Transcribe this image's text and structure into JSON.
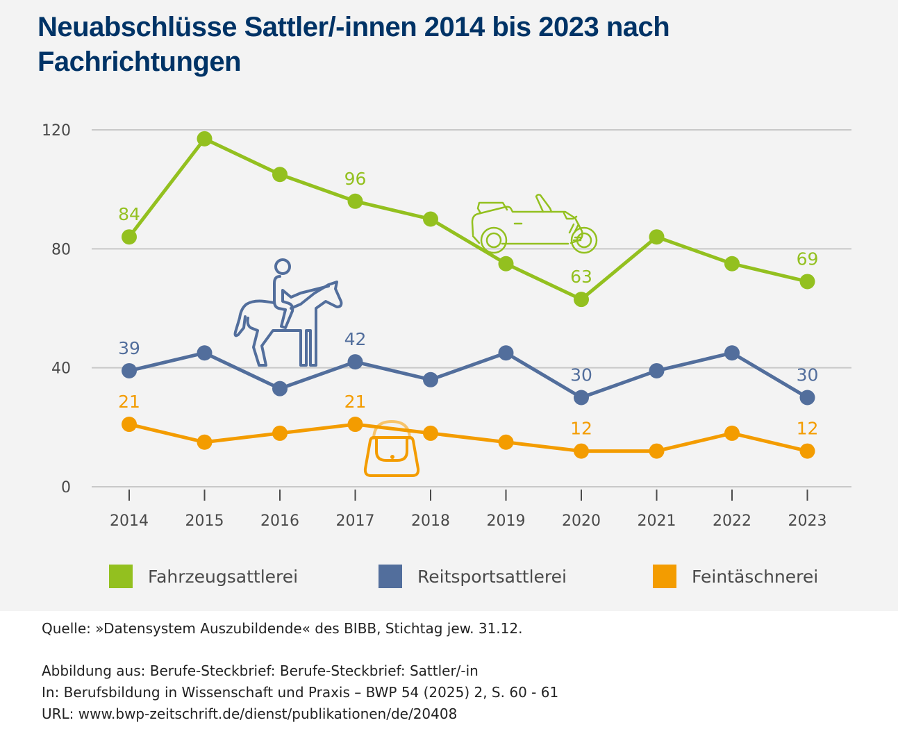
{
  "title": "Neuabschlüsse Sattler/-innen 2014 bis 2023 nach Fachrichtungen",
  "colors": {
    "green": "#93c01f",
    "blue": "#526e9c",
    "orange": "#f39c00",
    "grid": "#c8c8c8",
    "tick": "#4a4a4a"
  },
  "chart_data": {
    "type": "line",
    "title": "Neuabschlüsse Sattler/-innen 2014 bis 2023 nach Fachrichtungen",
    "xlabel": "",
    "ylabel": "",
    "x": [
      "2014",
      "2015",
      "2016",
      "2017",
      "2018",
      "2019",
      "2020",
      "2021",
      "2022",
      "2023"
    ],
    "ylim": [
      0,
      120
    ],
    "yticks": [
      0,
      40,
      80,
      120
    ],
    "grid": true,
    "legend_position": "bottom",
    "series": [
      {
        "name": "Fahrzeugsattlerei",
        "color": "#93c01f",
        "values": [
          84,
          117,
          105,
          96,
          90,
          75,
          63,
          84,
          75,
          69
        ],
        "labeled_points": [
          {
            "index": 0,
            "label": "84"
          },
          {
            "index": 3,
            "label": "96"
          },
          {
            "index": 6,
            "label": "63"
          },
          {
            "index": 9,
            "label": "69"
          }
        ],
        "icon": "convertible-car-icon"
      },
      {
        "name": "Reitsportsattlerei",
        "color": "#526e9c",
        "values": [
          39,
          45,
          33,
          42,
          36,
          45,
          30,
          39,
          45,
          30
        ],
        "labeled_points": [
          {
            "index": 0,
            "label": "39"
          },
          {
            "index": 3,
            "label": "42"
          },
          {
            "index": 6,
            "label": "30"
          },
          {
            "index": 9,
            "label": "30"
          }
        ],
        "icon": "horse-rider-icon"
      },
      {
        "name": "Feintäschnerei",
        "color": "#f39c00",
        "values": [
          21,
          15,
          18,
          21,
          18,
          15,
          12,
          12,
          18,
          12
        ],
        "labeled_points": [
          {
            "index": 0,
            "label": "21"
          },
          {
            "index": 3,
            "label": "21"
          },
          {
            "index": 6,
            "label": "12"
          },
          {
            "index": 9,
            "label": "12"
          }
        ],
        "icon": "handbag-icon"
      }
    ]
  },
  "legend": [
    {
      "label": "Fahrzeugsattlerei",
      "color": "#93c01f"
    },
    {
      "label": "Reitsportsattlerei",
      "color": "#526e9c"
    },
    {
      "label": "Feintäschnerei",
      "color": "#f39c00"
    }
  ],
  "footer": {
    "source": "Quelle: »Datensystem Auszubildende« des BIBB, Stichtag jew. 31.12.",
    "line1": "Abbildung aus: Berufe-Steckbrief: Berufe-Steckbrief: Sattler/-in",
    "line2": "In: Berufsbildung in Wissenschaft und Praxis – BWP 54 (2025) 2, S. 60 - 61",
    "line3": "URL: www.bwp-zeitschrift.de/dienst/publikationen/de/20408"
  }
}
